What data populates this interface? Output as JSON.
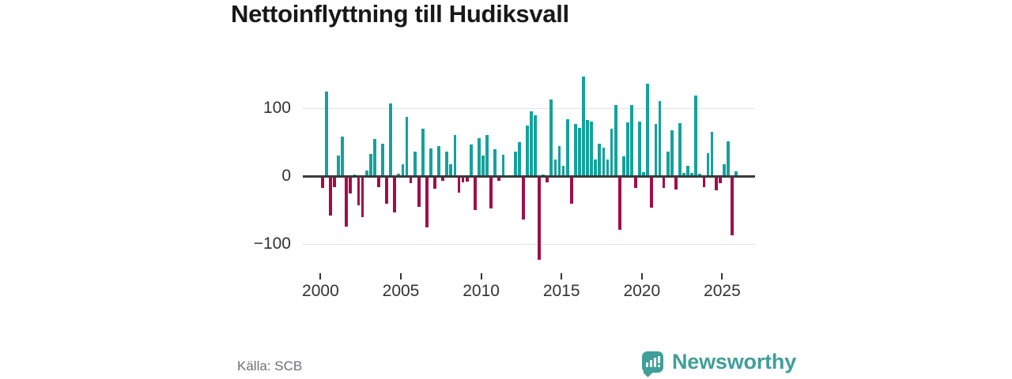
{
  "title": "Nettoinflyttning till Hudiksvall",
  "source": "Källa: SCB",
  "branding": {
    "name": "Newsworthy",
    "color": "#3f9f99"
  },
  "colors": {
    "positive": "#14a29b",
    "negative": "#a20c49",
    "grid": "#e2e2e2",
    "zero_line": "#3b3b3b",
    "axis_text": "#333333",
    "title_text": "#181818",
    "source_text": "#6e6e78"
  },
  "chart_data": {
    "type": "bar",
    "title": "Nettoinflyttning till Hudiksvall",
    "frequency": "quarterly",
    "start_year": 2000,
    "periods_per_year": 4,
    "xlabel": "",
    "ylabel": "",
    "ylim": [
      -130,
      155
    ],
    "grid": true,
    "legend": false,
    "y_ticks": [
      100,
      0,
      -100
    ],
    "y_tick_labels": [
      "100",
      "0",
      "−100"
    ],
    "x_ticks": [
      2000,
      2005,
      2010,
      2015,
      2020,
      2025
    ],
    "x_tick_labels": [
      "2000",
      "2005",
      "2010",
      "2015",
      "2020",
      "2025"
    ],
    "values": [
      -18,
      124,
      -58,
      -16,
      30,
      58,
      -74,
      -26,
      2,
      -43,
      -60,
      8,
      32,
      55,
      -16,
      48,
      -41,
      107,
      -54,
      3,
      17,
      87,
      -10,
      36,
      -45,
      70,
      -75,
      41,
      -19,
      44,
      -7,
      36,
      17,
      61,
      -24,
      -9,
      -8,
      46,
      -50,
      56,
      30,
      60,
      -48,
      40,
      -7,
      31,
      0,
      0,
      36,
      50,
      -64,
      74,
      95,
      90,
      -123,
      2,
      -9,
      113,
      25,
      44,
      15,
      84,
      -41,
      77,
      71,
      146,
      82,
      80,
      25,
      48,
      42,
      25,
      70,
      105,
      -79,
      29,
      79,
      105,
      -17,
      80,
      6,
      136,
      -46,
      77,
      110,
      -18,
      36,
      67,
      -20,
      78,
      5,
      15,
      5,
      119,
      3,
      -16,
      34,
      65,
      -21,
      -10,
      18,
      51,
      -87,
      7
    ]
  }
}
